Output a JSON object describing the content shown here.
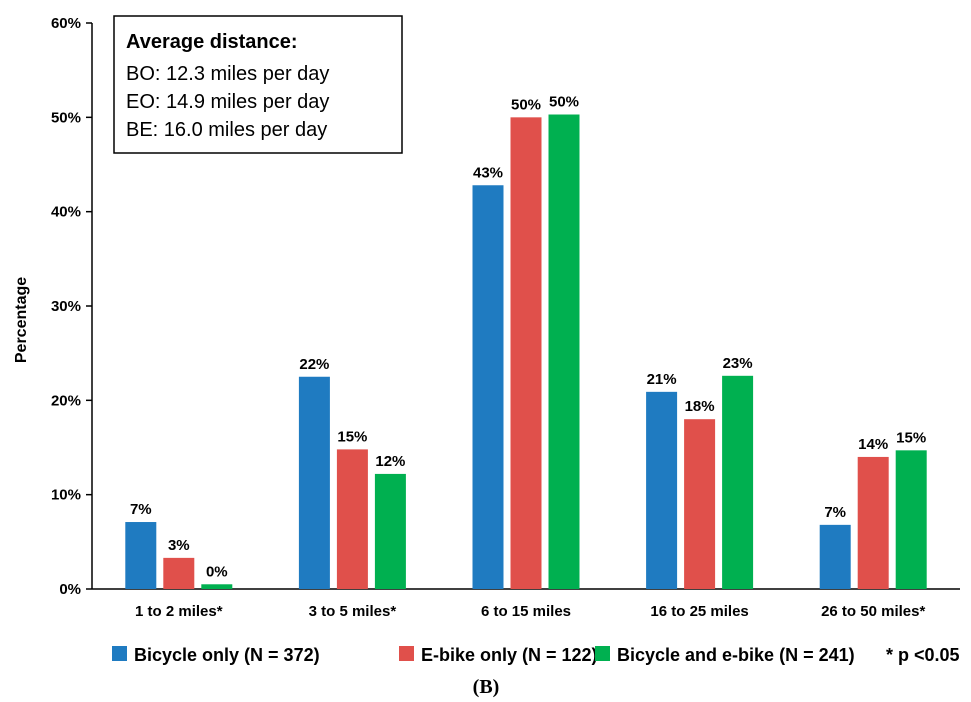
{
  "chart_data": {
    "type": "bar",
    "ylabel": "Percentage",
    "xlabel": "",
    "ylim": [
      0,
      60
    ],
    "yticks": [
      "0%",
      "10%",
      "20%",
      "30%",
      "40%",
      "50%",
      "60%"
    ],
    "categories": [
      "1 to 2 miles*",
      "3 to 5 miles*",
      "6 to 15 miles",
      "16 to 25 miles",
      "26 to 50 miles*"
    ],
    "series": [
      {
        "name": "Bicycle only (N = 372)",
        "color": "#1f7bc1",
        "values": [
          7.1,
          22.5,
          42.8,
          20.9,
          6.8
        ],
        "labels": [
          "7%",
          "22%",
          "43%",
          "21%",
          "7%"
        ]
      },
      {
        "name": "E-bike only (N = 122)",
        "color": "#e0504b",
        "values": [
          3.3,
          14.8,
          50.0,
          18.0,
          14.0
        ],
        "labels": [
          "3%",
          "15%",
          "50%",
          "18%",
          "14%"
        ]
      },
      {
        "name": "Bicycle and e-bike (N = 241)",
        "color": "#00b050",
        "values": [
          0.5,
          12.2,
          50.3,
          22.6,
          14.7
        ],
        "labels": [
          "0%",
          "12%",
          "50%",
          "23%",
          "15%"
        ]
      }
    ],
    "grid": false,
    "legend_position": "bottom"
  },
  "annotation": {
    "title": "Average distance:",
    "lines": [
      "BO: 12.3 miles per day",
      "EO: 14.9 miles per day",
      "BE: 16.0 miles per day"
    ]
  },
  "footnote": "* p <0.05",
  "caption": "(B)"
}
